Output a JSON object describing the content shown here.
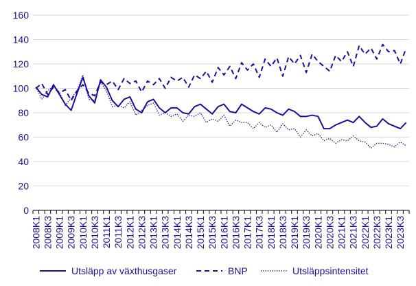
{
  "chart_data": {
    "type": "line",
    "title": "",
    "xlabel": "",
    "ylabel": "",
    "ylim": [
      0,
      160
    ],
    "yticks": [
      0,
      20,
      40,
      60,
      80,
      100,
      120,
      140,
      160
    ],
    "grid": true,
    "legend_position": "bottom",
    "color": "#1a0fa0",
    "x_tick_labels": [
      "2008K1",
      "2008K3",
      "2009K1",
      "2009K3",
      "2010K1",
      "2010K3",
      "2011K1",
      "2011K3",
      "2012K1",
      "2012K3",
      "2013K1",
      "2013K3",
      "2014K1",
      "2014K3",
      "2015K1",
      "2015K3",
      "2016K1",
      "2016K3",
      "2017K1",
      "2017K3",
      "2018K1",
      "2018K3",
      "2019K1",
      "2019K3",
      "2020K1",
      "2020K3",
      "2021K1",
      "2021K3",
      "2022K1",
      "2022K3",
      "2023K1",
      "2023K3"
    ],
    "categories": [
      "2008K1",
      "2008K2",
      "2008K3",
      "2008K4",
      "2009K1",
      "2009K2",
      "2009K3",
      "2009K4",
      "2010K1",
      "2010K2",
      "2010K3",
      "2010K4",
      "2011K1",
      "2011K2",
      "2011K3",
      "2011K4",
      "2012K1",
      "2012K2",
      "2012K3",
      "2012K4",
      "2013K1",
      "2013K2",
      "2013K3",
      "2013K4",
      "2014K1",
      "2014K2",
      "2014K3",
      "2014K4",
      "2015K1",
      "2015K2",
      "2015K3",
      "2015K4",
      "2016K1",
      "2016K2",
      "2016K3",
      "2016K4",
      "2017K1",
      "2017K2",
      "2017K3",
      "2017K4",
      "2018K1",
      "2018K2",
      "2018K3",
      "2018K4",
      "2019K1",
      "2019K2",
      "2019K3",
      "2019K4",
      "2020K1",
      "2020K2",
      "2020K3",
      "2020K4",
      "2021K1",
      "2021K2",
      "2021K3",
      "2021K4",
      "2022K1",
      "2022K2",
      "2022K3",
      "2022K4",
      "2023K1",
      "2023K2",
      "2023K3",
      "2023K4"
    ],
    "series": [
      {
        "name": "Utsläpp av växthusgaser",
        "style": "solid",
        "values": [
          101,
          95,
          93,
          103,
          95,
          87,
          82,
          96,
          109,
          94,
          88,
          107,
          101,
          90,
          85,
          91,
          93,
          83,
          80,
          89,
          91,
          84,
          80,
          84,
          84,
          80,
          79,
          85,
          87,
          83,
          79,
          85,
          87,
          81,
          80,
          87,
          84,
          81,
          79,
          84,
          83,
          80,
          78,
          83,
          81,
          77,
          77,
          78,
          77,
          67,
          67,
          70,
          72,
          74,
          72,
          77,
          72,
          68,
          69,
          75,
          71,
          69,
          67,
          72
        ]
      },
      {
        "name": "BNP",
        "style": "dashed",
        "values": [
          100,
          104,
          95,
          101,
          96,
          99,
          90,
          98,
          103,
          96,
          94,
          105,
          103,
          106,
          99,
          108,
          104,
          106,
          97,
          106,
          103,
          108,
          100,
          109,
          106,
          109,
          101,
          111,
          108,
          114,
          105,
          117,
          111,
          118,
          108,
          121,
          115,
          120,
          109,
          124,
          118,
          125,
          110,
          126,
          120,
          127,
          113,
          128,
          122,
          118,
          114,
          127,
          122,
          130,
          118,
          135,
          128,
          133,
          124,
          136,
          130,
          131,
          120,
          133
        ]
      },
      {
        "name": "Utsläppsintensitet",
        "style": "dotted",
        "values": [
          101,
          91,
          98,
          102,
          97,
          86,
          92,
          98,
          111,
          91,
          90,
          105,
          98,
          85,
          86,
          84,
          89,
          78,
          82,
          86,
          88,
          78,
          80,
          77,
          79,
          73,
          78,
          77,
          80,
          72,
          75,
          73,
          78,
          69,
          74,
          72,
          72,
          67,
          72,
          68,
          70,
          64,
          71,
          66,
          67,
          60,
          66,
          61,
          63,
          57,
          59,
          55,
          58,
          57,
          61,
          57,
          56,
          51,
          55,
          55,
          54,
          52,
          56,
          53
        ]
      }
    ]
  }
}
